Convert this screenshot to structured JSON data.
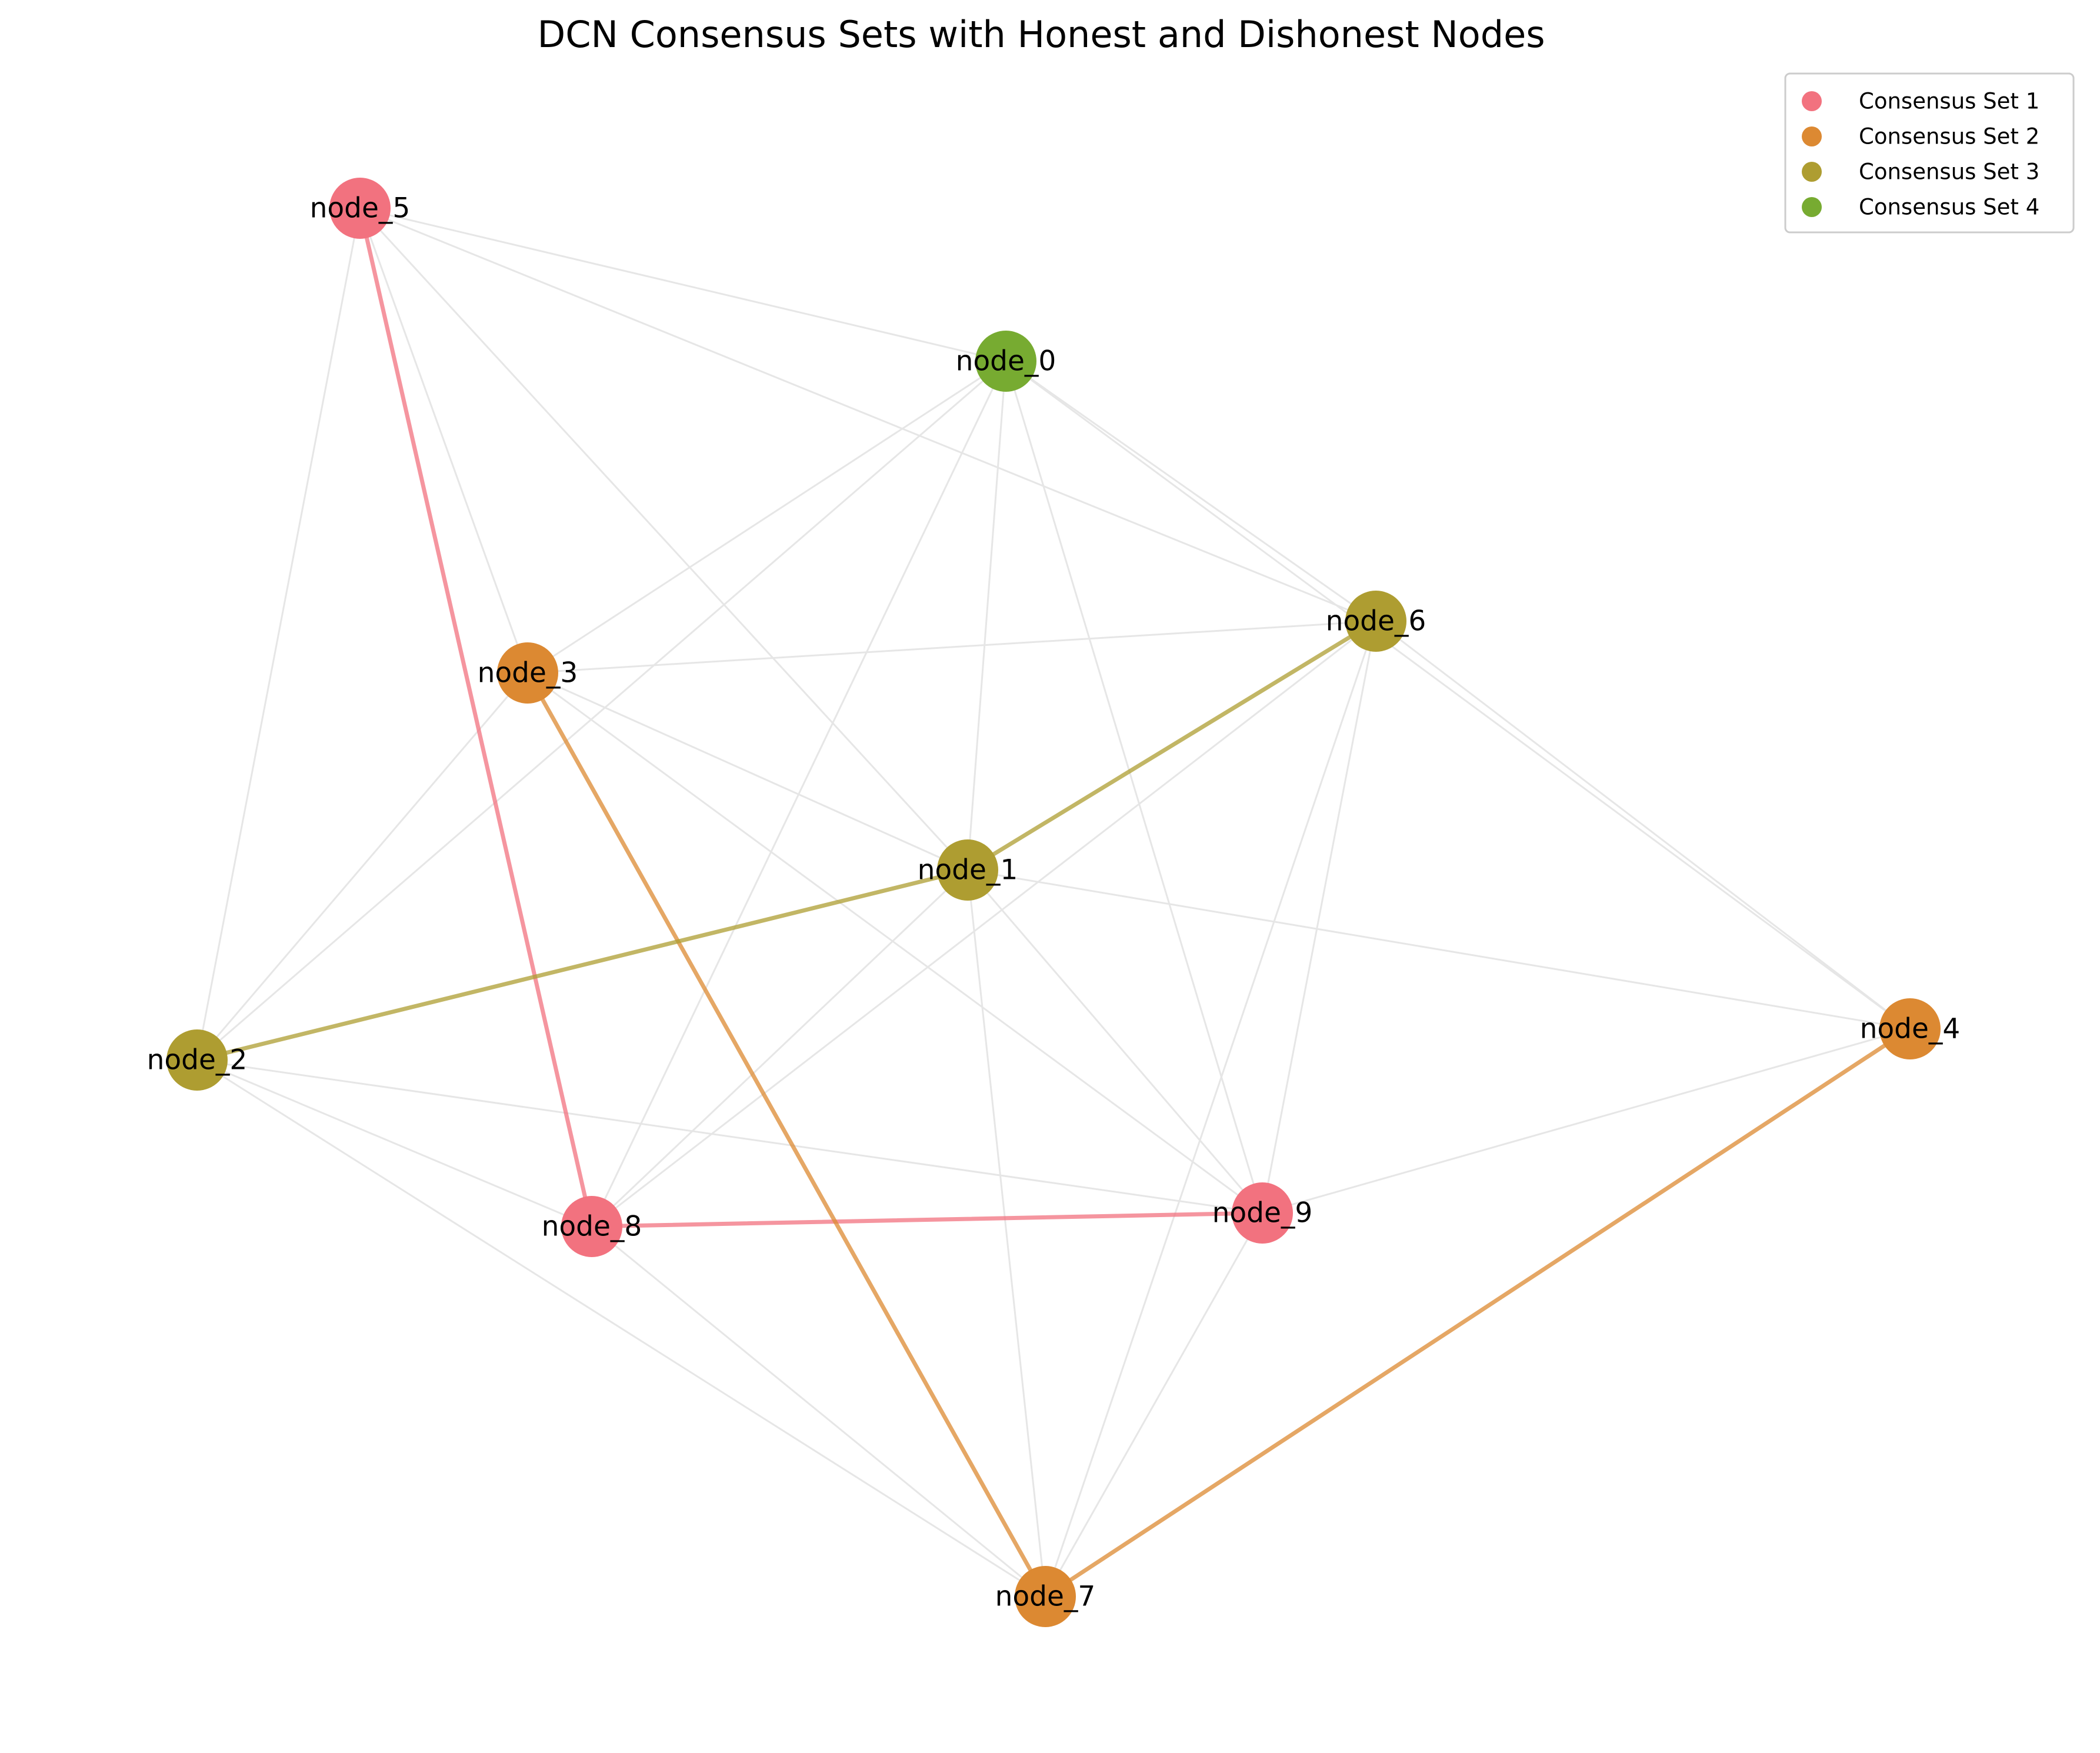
{
  "title": "DCN Consensus Sets with Honest and Dishonest Nodes",
  "colors": {
    "set1": "#f2727f",
    "set2": "#dc8932",
    "set3": "#ae9d31",
    "set4": "#77ab31",
    "background_edge": "#e6e6e6"
  },
  "legend": [
    {
      "label": "Consensus Set 1",
      "set": "set1"
    },
    {
      "label": "Consensus Set 2",
      "set": "set2"
    },
    {
      "label": "Consensus Set 3",
      "set": "set3"
    },
    {
      "label": "Consensus Set 4",
      "set": "set4"
    }
  ],
  "nodes": [
    {
      "id": "node_0",
      "label": "node_0",
      "set": "set4"
    },
    {
      "id": "node_1",
      "label": "node_1",
      "set": "set3"
    },
    {
      "id": "node_2",
      "label": "node_2",
      "set": "set3"
    },
    {
      "id": "node_3",
      "label": "node_3",
      "set": "set2"
    },
    {
      "id": "node_4",
      "label": "node_4",
      "set": "set2"
    },
    {
      "id": "node_5",
      "label": "node_5",
      "set": "set1"
    },
    {
      "id": "node_6",
      "label": "node_6",
      "set": "set3"
    },
    {
      "id": "node_7",
      "label": "node_7",
      "set": "set2"
    },
    {
      "id": "node_8",
      "label": "node_8",
      "set": "set1"
    },
    {
      "id": "node_9",
      "label": "node_9",
      "set": "set1"
    }
  ],
  "background_edges": [
    [
      "node_5",
      "node_0"
    ],
    [
      "node_5",
      "node_6"
    ],
    [
      "node_5",
      "node_3"
    ],
    [
      "node_5",
      "node_1"
    ],
    [
      "node_5",
      "node_2"
    ],
    [
      "node_0",
      "node_3"
    ],
    [
      "node_0",
      "node_2"
    ],
    [
      "node_0",
      "node_8"
    ],
    [
      "node_0",
      "node_1"
    ],
    [
      "node_0",
      "node_9"
    ],
    [
      "node_0",
      "node_6"
    ],
    [
      "node_0",
      "node_4"
    ],
    [
      "node_3",
      "node_6"
    ],
    [
      "node_3",
      "node_1"
    ],
    [
      "node_3",
      "node_9"
    ],
    [
      "node_3",
      "node_2"
    ],
    [
      "node_6",
      "node_4"
    ],
    [
      "node_6",
      "node_8"
    ],
    [
      "node_6",
      "node_7"
    ],
    [
      "node_6",
      "node_9"
    ],
    [
      "node_1",
      "node_4"
    ],
    [
      "node_1",
      "node_8"
    ],
    [
      "node_1",
      "node_9"
    ],
    [
      "node_1",
      "node_7"
    ],
    [
      "node_2",
      "node_9"
    ],
    [
      "node_2",
      "node_8"
    ],
    [
      "node_2",
      "node_7"
    ],
    [
      "node_8",
      "node_7"
    ],
    [
      "node_9",
      "node_7"
    ],
    [
      "node_9",
      "node_4"
    ]
  ],
  "consensus_edges": [
    {
      "from": "node_5",
      "to": "node_8",
      "set": "set1"
    },
    {
      "from": "node_8",
      "to": "node_9",
      "set": "set1"
    },
    {
      "from": "node_3",
      "to": "node_7",
      "set": "set2"
    },
    {
      "from": "node_7",
      "to": "node_4",
      "set": "set2"
    },
    {
      "from": "node_6",
      "to": "node_1",
      "set": "set3"
    },
    {
      "from": "node_1",
      "to": "node_2",
      "set": "set3"
    }
  ]
}
